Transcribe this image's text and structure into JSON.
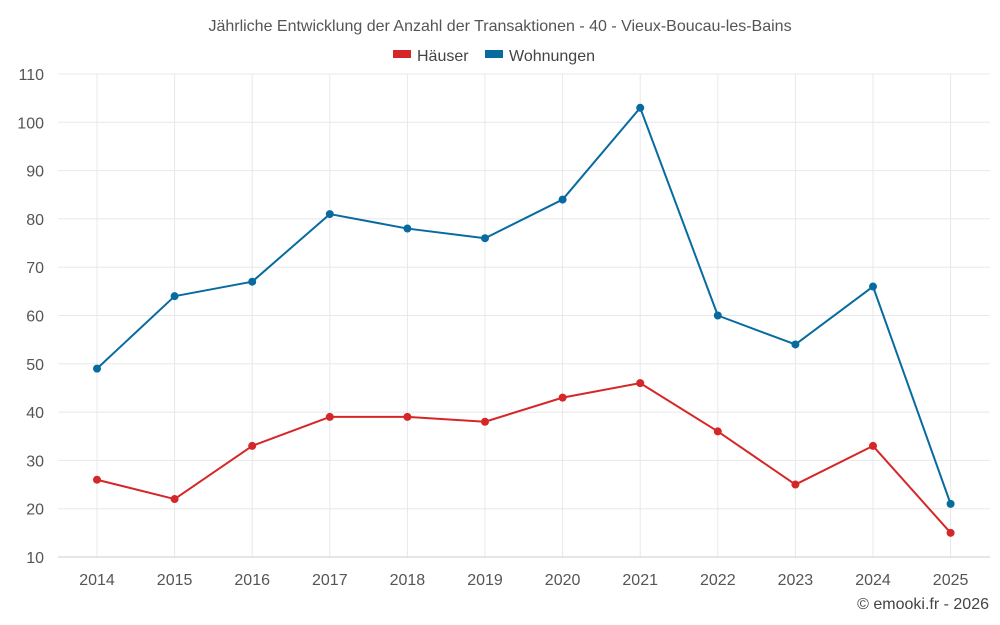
{
  "chart_data": {
    "type": "line",
    "title": "Jährliche Entwicklung der Anzahl der Transaktionen - 40 - Vieux-Boucau-les-Bains",
    "categories": [
      "2014",
      "2015",
      "2016",
      "2017",
      "2018",
      "2019",
      "2020",
      "2021",
      "2022",
      "2023",
      "2024",
      "2025"
    ],
    "series": [
      {
        "name": "Häuser",
        "color": "#d62728",
        "values": [
          26,
          22,
          33,
          39,
          39,
          38,
          43,
          46,
          36,
          25,
          33,
          15
        ]
      },
      {
        "name": "Wohnungen",
        "color": "#086ba0",
        "values": [
          49,
          64,
          67,
          81,
          78,
          76,
          84,
          103,
          60,
          54,
          66,
          21
        ]
      }
    ],
    "ylim": [
      10,
      110
    ],
    "yticks": [
      "10",
      "20",
      "30",
      "40",
      "50",
      "60",
      "70",
      "80",
      "90",
      "100",
      "110"
    ],
    "xlabel": "",
    "ylabel": "",
    "grid": true,
    "legend": "top-center"
  },
  "credit": "© emooki.fr - 2026"
}
